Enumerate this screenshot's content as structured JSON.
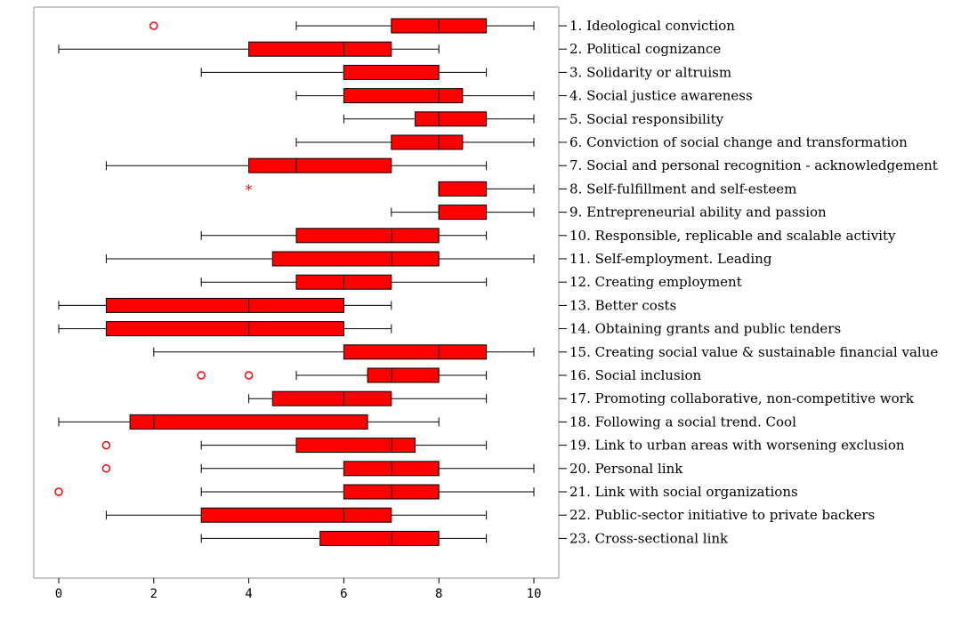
{
  "chart_data": {
    "type": "boxplot",
    "xlim": [
      0,
      10
    ],
    "x_ticks": [
      0,
      2,
      4,
      6,
      8,
      10
    ],
    "grid": false,
    "legend": "none",
    "colors": {
      "box": "#ff0000",
      "outlier": "#ff0000",
      "frame": "#c8c8c8"
    },
    "categories": [
      "1. Ideological conviction",
      "2. Political cognizance",
      "3. Solidarity or altruism",
      "4. Social justice awareness",
      "5. Social responsibility",
      "6. Conviction of social change and transformation",
      "7. Social and personal recognition - acknowledgement",
      "8. Self-fulfillment and self-esteem",
      "9. Entrepreneurial ability and passion",
      "10. Responsible, replicable and scalable activity",
      "11. Self-employment. Leading",
      "12. Creating employment",
      "13. Better costs",
      "14. Obtaining grants and public tenders",
      "15. Creating social value & sustainable financial value",
      "16. Social inclusion",
      "17. Promoting collaborative, non-competitive work",
      "18. Following a social trend. Cool",
      "19. Link to urban areas with worsening exclusion",
      "20. Personal link",
      "21. Link with social organizations",
      "22. Public-sector initiative to private backers",
      "23. Cross-sectional link"
    ],
    "boxes": [
      {
        "min": 5,
        "q1": 7,
        "median": 8,
        "q3": 9,
        "max": 10,
        "outliers": [
          2
        ],
        "extremes": []
      },
      {
        "min": 0,
        "q1": 4,
        "median": 6,
        "q3": 7,
        "max": 8,
        "outliers": [],
        "extremes": []
      },
      {
        "min": 3,
        "q1": 6,
        "median": 6,
        "q3": 8,
        "max": 9,
        "outliers": [],
        "extremes": []
      },
      {
        "min": 5,
        "q1": 6,
        "median": 8,
        "q3": 8.5,
        "max": 10,
        "outliers": [],
        "extremes": []
      },
      {
        "min": 6,
        "q1": 7.5,
        "median": 8,
        "q3": 9,
        "max": 10,
        "outliers": [],
        "extremes": []
      },
      {
        "min": 5,
        "q1": 7,
        "median": 8,
        "q3": 8.5,
        "max": 10,
        "outliers": [],
        "extremes": []
      },
      {
        "min": 1,
        "q1": 4,
        "median": 5,
        "q3": 7,
        "max": 9,
        "outliers": [],
        "extremes": []
      },
      {
        "min": 8,
        "q1": 8,
        "median": 8,
        "q3": 9,
        "max": 10,
        "outliers": [],
        "extremes": [
          4
        ]
      },
      {
        "min": 7,
        "q1": 8,
        "median": 8,
        "q3": 9,
        "max": 10,
        "outliers": [],
        "extremes": []
      },
      {
        "min": 3,
        "q1": 5,
        "median": 7,
        "q3": 8,
        "max": 9,
        "outliers": [],
        "extremes": []
      },
      {
        "min": 1,
        "q1": 4.5,
        "median": 7,
        "q3": 8,
        "max": 10,
        "outliers": [],
        "extremes": []
      },
      {
        "min": 3,
        "q1": 5,
        "median": 6,
        "q3": 7,
        "max": 9,
        "outliers": [],
        "extremes": []
      },
      {
        "min": 0,
        "q1": 1,
        "median": 4,
        "q3": 6,
        "max": 7,
        "outliers": [],
        "extremes": []
      },
      {
        "min": 0,
        "q1": 1,
        "median": 4,
        "q3": 6,
        "max": 7,
        "outliers": [],
        "extremes": []
      },
      {
        "min": 2,
        "q1": 6,
        "median": 8,
        "q3": 9,
        "max": 10,
        "outliers": [],
        "extremes": []
      },
      {
        "min": 5,
        "q1": 6.5,
        "median": 7,
        "q3": 8,
        "max": 9,
        "outliers": [
          3,
          4
        ],
        "extremes": []
      },
      {
        "min": 4,
        "q1": 4.5,
        "median": 6,
        "q3": 7,
        "max": 9,
        "outliers": [],
        "extremes": []
      },
      {
        "min": 0,
        "q1": 1.5,
        "median": 2,
        "q3": 6.5,
        "max": 8,
        "outliers": [],
        "extremes": []
      },
      {
        "min": 3,
        "q1": 5,
        "median": 7,
        "q3": 7.5,
        "max": 9,
        "outliers": [
          1
        ],
        "extremes": []
      },
      {
        "min": 3,
        "q1": 6,
        "median": 7,
        "q3": 8,
        "max": 10,
        "outliers": [
          1
        ],
        "extremes": []
      },
      {
        "min": 3,
        "q1": 6,
        "median": 7,
        "q3": 8,
        "max": 10,
        "outliers": [
          0
        ],
        "extremes": []
      },
      {
        "min": 1,
        "q1": 3,
        "median": 6,
        "q3": 7,
        "max": 9,
        "outliers": [],
        "extremes": []
      },
      {
        "min": 3,
        "q1": 5.5,
        "median": 7,
        "q3": 8,
        "max": 9,
        "outliers": [],
        "extremes": []
      }
    ]
  }
}
